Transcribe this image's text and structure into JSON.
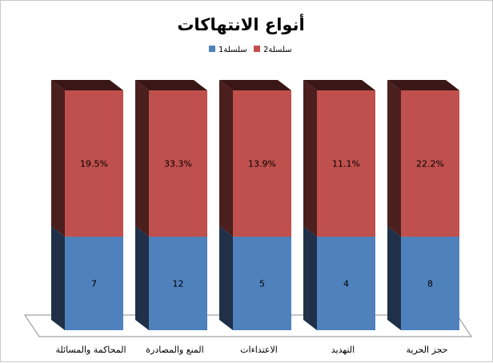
{
  "chart_data": {
    "type": "bar",
    "stacked": true,
    "three_d": true,
    "title": "أنواع الانتهاكات",
    "categories": [
      "المحاكمة والمسائلة",
      "المنع والمصادرة",
      "الاعتداءات",
      "التهديد",
      "حجز الحرية"
    ],
    "series": [
      {
        "name": "سلسلة1",
        "color": "#4f81bd",
        "side_color": "#1f3048",
        "labels": [
          "7",
          "12",
          "5",
          "4",
          "8"
        ],
        "share": 0.39
      },
      {
        "name": "سلسلة2",
        "color": "#c0504d",
        "side_color": "#4a1f1e",
        "labels": [
          "19.5%",
          "33.3%",
          "13.9%",
          "11.1%",
          "22.2%"
        ],
        "share": 0.61
      }
    ],
    "legend_position": "top",
    "grid": false
  }
}
